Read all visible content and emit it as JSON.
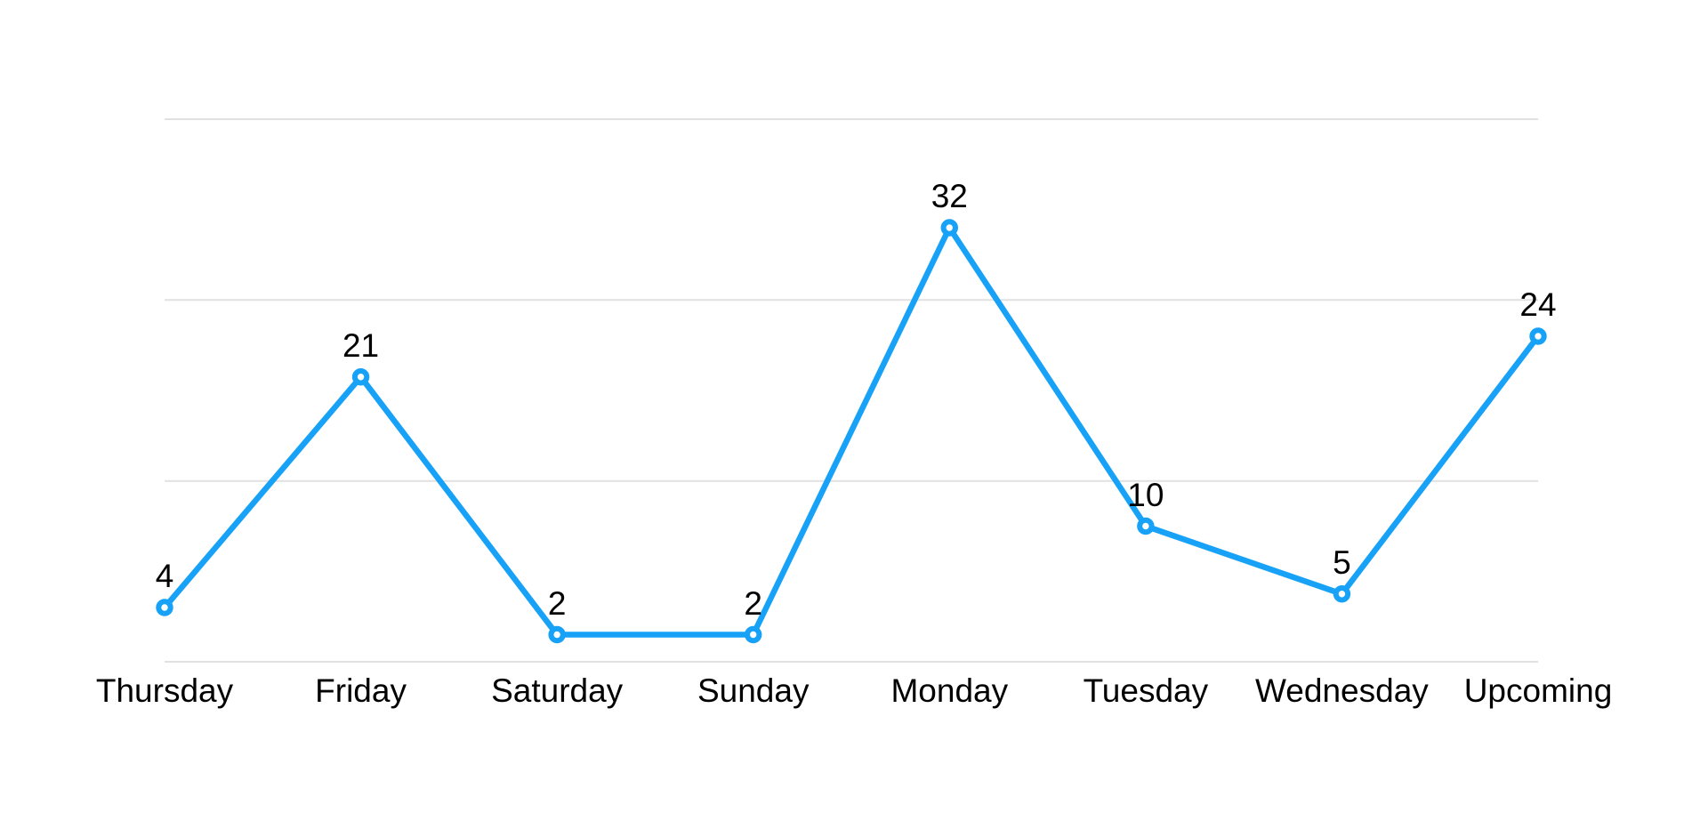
{
  "chart_data": {
    "type": "line",
    "categories": [
      "Thursday",
      "Friday",
      "Saturday",
      "Sunday",
      "Monday",
      "Tuesday",
      "Wednesday",
      "Upcoming"
    ],
    "values": [
      4,
      21,
      2,
      2,
      32,
      10,
      5,
      24
    ],
    "point_labels": [
      "4",
      "21",
      "2",
      "2",
      "32",
      "10",
      "5",
      "24"
    ],
    "title": "",
    "xlabel": "",
    "ylabel": "",
    "ylim": [
      0,
      40
    ],
    "gridline_values": [
      0,
      13.33,
      26.67,
      40
    ],
    "y_tick_labels_visible": false,
    "grid": "horizontal",
    "legend_position": "none",
    "line_color": "#17A2F7",
    "marker_fill_color": "#FFFFFF",
    "gridline_color": "#E1E1E1",
    "text_color": "#000000",
    "background_color": "#FFFFFF"
  }
}
